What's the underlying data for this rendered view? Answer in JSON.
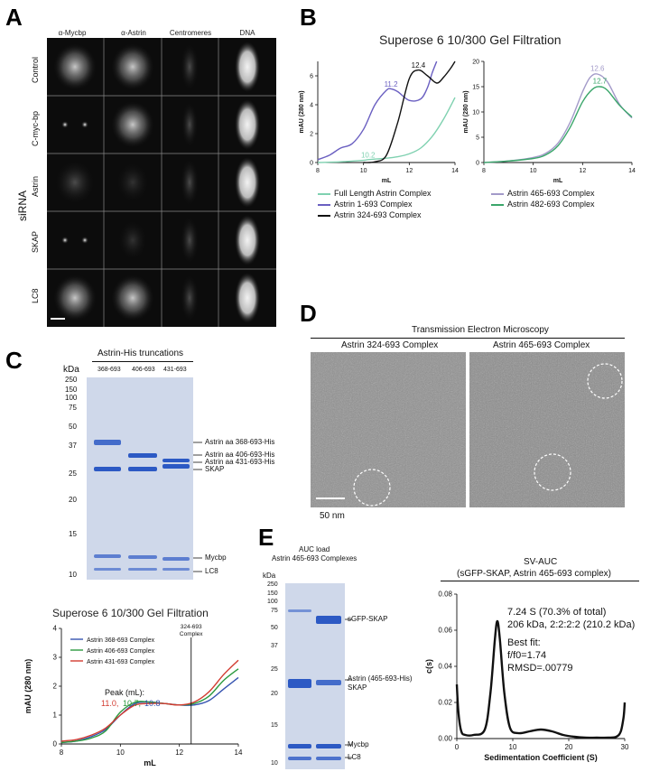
{
  "panel_a": {
    "letter": "A",
    "columns": [
      "α-Mycbp",
      "α-Astrin",
      "Centromeres",
      "DNA"
    ],
    "rows": [
      "Control",
      "C-myc-bp",
      "Astrin",
      "SKAP",
      "LC8"
    ],
    "group_label": "siRNA"
  },
  "panel_b": {
    "letter": "B",
    "title": "Superose 6 10/300 Gel Filtration",
    "legend_left": [
      "Full Length Astrin Complex",
      "Astrin 1-693 Complex",
      "Astrin 324-693 Complex"
    ],
    "legend_right": [
      "Astrin 465-693 Complex",
      "Astrin 482-693 Complex"
    ]
  },
  "panel_c": {
    "letter": "C",
    "gel_title": "Astrin-His truncations",
    "kda": "kDa",
    "lanes": [
      "368-693",
      "406-693",
      "431-693"
    ],
    "markers": [
      "250",
      "150",
      "100",
      "75",
      "50",
      "37",
      "25",
      "20",
      "15",
      "10"
    ],
    "band_labels": [
      "Astrin aa 368-693-His",
      "Astrin aa 406-693-His",
      "Astrin aa 431-693-His",
      "SKAP",
      "Mycbp",
      "LC8"
    ],
    "peak_label": "Peak (mL):",
    "peak_values": [
      "11.0",
      "10.7",
      "10.8"
    ],
    "annotation": "Astrin 324-693 Complex"
  },
  "panel_d": {
    "letter": "D",
    "title": "Transmission Electron Microscopy",
    "left_label": "Astrin 324-693 Complex",
    "right_label": "Astrin 465-693 Complex",
    "scale": "50 nm"
  },
  "panel_e": {
    "letter": "E",
    "gel_title_1": "AUC load",
    "gel_title_2": "Astrin 465-693 Complexes",
    "kda": "kDa",
    "markers": [
      "250",
      "150",
      "100",
      "75",
      "50",
      "37",
      "25",
      "20",
      "15",
      "10"
    ],
    "band_labels": [
      "sGFP-SKAP",
      "Astrin (465-693-His)",
      "SKAP",
      "Mycbp",
      "LC8"
    ],
    "auc_title_1": "SV-AUC",
    "auc_title_2": "(sGFP-SKAP, Astrin 465-693 complex)",
    "auc_text": [
      "7.24 S (70.3% of total)",
      "206 kDa, 2:2:2:2 (210.2 kDa)",
      "Best fit:",
      "f/f0=1.74",
      "RMSD=.00779"
    ]
  },
  "colors": {
    "fl": "#7fd1b0",
    "c1_693": "#6a5fc1",
    "c324": "#111111",
    "c465": "#a39ac9",
    "c482": "#3aa66a",
    "c368": "#3553b0",
    "c406": "#2c9a3f",
    "c431": "#d23a2f",
    "gel_band": "#2c59c4"
  },
  "chart_data": [
    {
      "type": "line",
      "title": "Superose 6 10/300 Gel Filtration",
      "xlabel": "mL",
      "ylabel": "mAU (280 nm)",
      "xlim": [
        8,
        14
      ],
      "ylim": [
        0,
        7
      ],
      "xticks": [
        8,
        10,
        12,
        14
      ],
      "yticks": [
        0,
        2,
        4,
        6
      ],
      "series": [
        {
          "name": "Full Length Astrin Complex",
          "color": "#7fd1b0",
          "x": [
            8,
            9,
            10,
            10.2,
            11,
            11.5,
            12,
            12.5,
            13,
            13.5,
            14
          ],
          "y": [
            0,
            0.05,
            0.15,
            0.2,
            0.3,
            0.4,
            0.6,
            1.0,
            1.8,
            3.0,
            4.5
          ]
        },
        {
          "name": "Astrin 1-693 Complex",
          "color": "#6a5fc1",
          "x": [
            8,
            8.5,
            9,
            9.5,
            10,
            10.5,
            11,
            11.2,
            11.5,
            12,
            12.5,
            12.8,
            13,
            13.2
          ],
          "y": [
            0.2,
            0.5,
            1.0,
            1.3,
            2.3,
            4.0,
            5.0,
            5.1,
            4.9,
            4.3,
            4.4,
            5.2,
            6.2,
            7.0
          ]
        },
        {
          "name": "Astrin 324-693 Complex",
          "color": "#111111",
          "x": [
            10,
            10.5,
            11,
            11.5,
            12,
            12.4,
            12.8,
            13.2,
            13.5,
            13.8,
            14
          ],
          "y": [
            0,
            0.05,
            0.5,
            2.8,
            5.8,
            6.4,
            6.0,
            5.5,
            5.9,
            6.5,
            7.0
          ]
        }
      ],
      "annotations": [
        "10.2",
        "11.2",
        "12.4"
      ]
    },
    {
      "type": "line",
      "xlabel": "mL",
      "ylabel": "mAU (280 nm)",
      "xlim": [
        8,
        14
      ],
      "ylim": [
        0,
        20
      ],
      "xticks": [
        8,
        10,
        12,
        14
      ],
      "yticks": [
        0,
        5,
        10,
        15,
        20
      ],
      "series": [
        {
          "name": "Astrin 465-693 Complex",
          "color": "#a39ac9",
          "x": [
            8,
            9,
            10,
            10.5,
            11,
            11.5,
            12,
            12.3,
            12.6,
            13,
            13.5,
            14
          ],
          "y": [
            0,
            0.3,
            1.0,
            1.8,
            3.8,
            8.0,
            14.0,
            16.8,
            17.5,
            16.0,
            11.5,
            8.8
          ]
        },
        {
          "name": "Astrin 482-693 Complex",
          "color": "#3aa66a",
          "x": [
            8,
            9,
            10,
            10.5,
            11,
            11.5,
            12,
            12.4,
            12.7,
            13,
            13.5,
            14
          ],
          "y": [
            0,
            0.3,
            0.8,
            1.5,
            3.3,
            7.0,
            12.0,
            14.5,
            15.0,
            14.3,
            11.3,
            9.0
          ]
        }
      ],
      "annotations": [
        "12.6",
        "12.7"
      ]
    },
    {
      "type": "line",
      "title": "Superose 6 10/300 Gel Filtration",
      "xlabel": "mL",
      "ylabel": "mAU (280 nm)",
      "xlim": [
        8,
        14
      ],
      "ylim": [
        0,
        4
      ],
      "xticks": [
        8,
        10,
        12,
        14
      ],
      "yticks": [
        0,
        1,
        2,
        3,
        4
      ],
      "series": [
        {
          "name": "Astrin 368-693 Complex",
          "color": "#3553b0",
          "x": [
            8,
            8.5,
            9,
            9.5,
            10,
            10.5,
            11,
            11.5,
            12,
            12.5,
            13,
            13.5,
            14
          ],
          "y": [
            0.05,
            0.1,
            0.25,
            0.5,
            1.0,
            1.4,
            1.45,
            1.4,
            1.35,
            1.35,
            1.5,
            1.9,
            2.3
          ]
        },
        {
          "name": "Astrin 406-693 Complex",
          "color": "#2c9a3f",
          "x": [
            8,
            8.5,
            9,
            9.5,
            10,
            10.5,
            11,
            11.5,
            12,
            12.5,
            13,
            13.5,
            14
          ],
          "y": [
            0.05,
            0.1,
            0.2,
            0.45,
            1.1,
            1.45,
            1.45,
            1.4,
            1.35,
            1.4,
            1.65,
            2.2,
            2.6
          ]
        },
        {
          "name": "Astrin 431-693 Complex",
          "color": "#d23a2f",
          "x": [
            8,
            8.5,
            9,
            9.5,
            10,
            10.5,
            11,
            11.5,
            12,
            12.5,
            13,
            13.5,
            14
          ],
          "y": [
            0.1,
            0.15,
            0.3,
            0.55,
            1.0,
            1.35,
            1.4,
            1.4,
            1.35,
            1.45,
            1.8,
            2.4,
            2.9
          ]
        }
      ],
      "vline": 12.4
    },
    {
      "type": "line",
      "title": "SV-AUC",
      "xlabel": "Sedimentation Coefficient (S)",
      "ylabel": "c(s)",
      "xlim": [
        0,
        30
      ],
      "ylim": [
        0,
        0.08
      ],
      "xticks": [
        0,
        10,
        20,
        30
      ],
      "yticks": [
        0.0,
        0.02,
        0.04,
        0.06,
        0.08
      ],
      "series": [
        {
          "name": "c(s)",
          "color": "#111111",
          "x": [
            0,
            0.3,
            0.8,
            1.5,
            3,
            5,
            6,
            6.8,
            7.24,
            7.7,
            8.5,
            9.5,
            11,
            13,
            15,
            17,
            19,
            21,
            23,
            25,
            27,
            28.5,
            29.3,
            29.8,
            30
          ],
          "y": [
            0.03,
            0.014,
            0.004,
            0.002,
            0.002,
            0.005,
            0.025,
            0.055,
            0.065,
            0.055,
            0.025,
            0.006,
            0.003,
            0.004,
            0.005,
            0.004,
            0.002,
            0.001,
            0.0005,
            0.0005,
            0.0005,
            0.001,
            0.004,
            0.012,
            0.02
          ]
        }
      ]
    }
  ]
}
